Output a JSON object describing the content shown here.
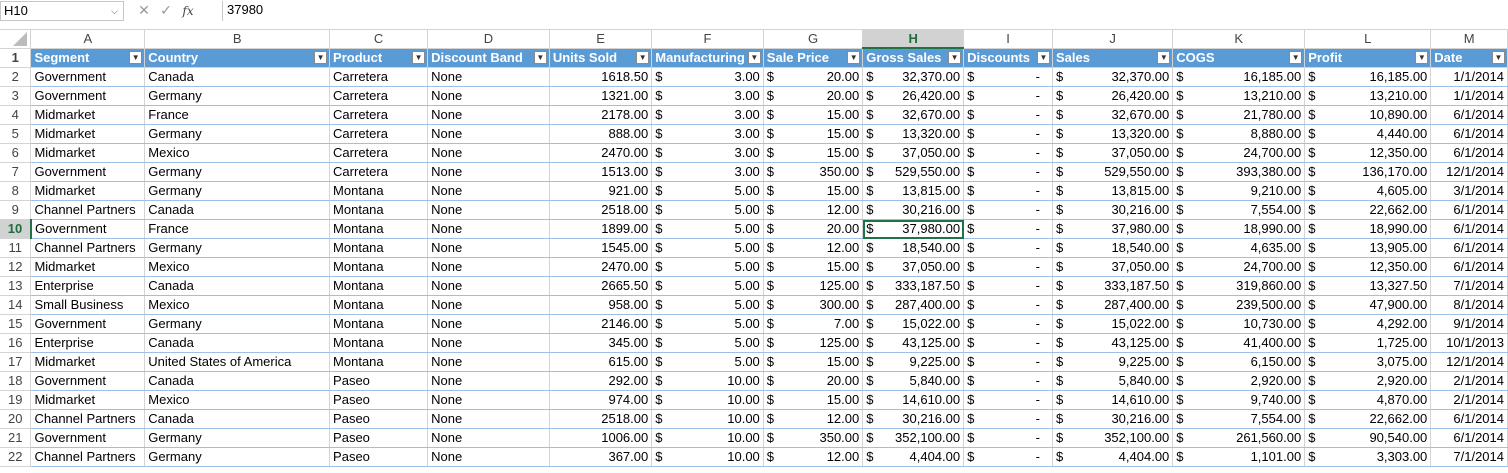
{
  "formula_bar": {
    "name_box": "H10",
    "cancel_icon": "✕",
    "enter_icon": "✓",
    "fx_label": "fx",
    "formula_value": "37980"
  },
  "column_letters": [
    "A",
    "B",
    "C",
    "D",
    "E",
    "F",
    "G",
    "H",
    "I",
    "J",
    "K",
    "L",
    "M"
  ],
  "selected_column": "H",
  "selected_row": 10,
  "headers": [
    "Segment",
    "Country",
    "Product",
    "Discount Band",
    "Units Sold",
    "Manufacturing",
    "Sale Price",
    "Gross Sales",
    "Discounts",
    "Sales",
    "COGS",
    "Profit",
    "Date"
  ],
  "currency_symbol": "$",
  "rows": [
    {
      "n": "2",
      "c": [
        "Government",
        "Canada",
        "Carretera",
        "None",
        "1618.50",
        "3.00",
        "20.00",
        "32,370.00",
        "-",
        "32,370.00",
        "16,185.00",
        "16,185.00",
        "1/1/2014"
      ]
    },
    {
      "n": "3",
      "c": [
        "Government",
        "Germany",
        "Carretera",
        "None",
        "1321.00",
        "3.00",
        "20.00",
        "26,420.00",
        "-",
        "26,420.00",
        "13,210.00",
        "13,210.00",
        "1/1/2014"
      ]
    },
    {
      "n": "4",
      "c": [
        "Midmarket",
        "France",
        "Carretera",
        "None",
        "2178.00",
        "3.00",
        "15.00",
        "32,670.00",
        "-",
        "32,670.00",
        "21,780.00",
        "10,890.00",
        "6/1/2014"
      ]
    },
    {
      "n": "5",
      "c": [
        "Midmarket",
        "Germany",
        "Carretera",
        "None",
        "888.00",
        "3.00",
        "15.00",
        "13,320.00",
        "-",
        "13,320.00",
        "8,880.00",
        "4,440.00",
        "6/1/2014"
      ]
    },
    {
      "n": "6",
      "c": [
        "Midmarket",
        "Mexico",
        "Carretera",
        "None",
        "2470.00",
        "3.00",
        "15.00",
        "37,050.00",
        "-",
        "37,050.00",
        "24,700.00",
        "12,350.00",
        "6/1/2014"
      ]
    },
    {
      "n": "7",
      "c": [
        "Government",
        "Germany",
        "Carretera",
        "None",
        "1513.00",
        "3.00",
        "350.00",
        "529,550.00",
        "-",
        "529,550.00",
        "393,380.00",
        "136,170.00",
        "12/1/2014"
      ]
    },
    {
      "n": "8",
      "c": [
        "Midmarket",
        "Germany",
        "Montana",
        "None",
        "921.00",
        "5.00",
        "15.00",
        "13,815.00",
        "-",
        "13,815.00",
        "9,210.00",
        "4,605.00",
        "3/1/2014"
      ]
    },
    {
      "n": "9",
      "c": [
        "Channel Partners",
        "Canada",
        "Montana",
        "None",
        "2518.00",
        "5.00",
        "12.00",
        "30,216.00",
        "-",
        "30,216.00",
        "7,554.00",
        "22,662.00",
        "6/1/2014"
      ]
    },
    {
      "n": "10",
      "c": [
        "Government",
        "France",
        "Montana",
        "None",
        "1899.00",
        "5.00",
        "20.00",
        "37,980.00",
        "-",
        "37,980.00",
        "18,990.00",
        "18,990.00",
        "6/1/2014"
      ]
    },
    {
      "n": "11",
      "c": [
        "Channel Partners",
        "Germany",
        "Montana",
        "None",
        "1545.00",
        "5.00",
        "12.00",
        "18,540.00",
        "-",
        "18,540.00",
        "4,635.00",
        "13,905.00",
        "6/1/2014"
      ]
    },
    {
      "n": "12",
      "c": [
        "Midmarket",
        "Mexico",
        "Montana",
        "None",
        "2470.00",
        "5.00",
        "15.00",
        "37,050.00",
        "-",
        "37,050.00",
        "24,700.00",
        "12,350.00",
        "6/1/2014"
      ]
    },
    {
      "n": "13",
      "c": [
        "Enterprise",
        "Canada",
        "Montana",
        "None",
        "2665.50",
        "5.00",
        "125.00",
        "333,187.50",
        "-",
        "333,187.50",
        "319,860.00",
        "13,327.50",
        "7/1/2014"
      ]
    },
    {
      "n": "14",
      "c": [
        "Small Business",
        "Mexico",
        "Montana",
        "None",
        "958.00",
        "5.00",
        "300.00",
        "287,400.00",
        "-",
        "287,400.00",
        "239,500.00",
        "47,900.00",
        "8/1/2014"
      ]
    },
    {
      "n": "15",
      "c": [
        "Government",
        "Germany",
        "Montana",
        "None",
        "2146.00",
        "5.00",
        "7.00",
        "15,022.00",
        "-",
        "15,022.00",
        "10,730.00",
        "4,292.00",
        "9/1/2014"
      ]
    },
    {
      "n": "16",
      "c": [
        "Enterprise",
        "Canada",
        "Montana",
        "None",
        "345.00",
        "5.00",
        "125.00",
        "43,125.00",
        "-",
        "43,125.00",
        "41,400.00",
        "1,725.00",
        "10/1/2013"
      ]
    },
    {
      "n": "17",
      "c": [
        "Midmarket",
        "United States of America",
        "Montana",
        "None",
        "615.00",
        "5.00",
        "15.00",
        "9,225.00",
        "-",
        "9,225.00",
        "6,150.00",
        "3,075.00",
        "12/1/2014"
      ]
    },
    {
      "n": "18",
      "c": [
        "Government",
        "Canada",
        "Paseo",
        "None",
        "292.00",
        "10.00",
        "20.00",
        "5,840.00",
        "-",
        "5,840.00",
        "2,920.00",
        "2,920.00",
        "2/1/2014"
      ]
    },
    {
      "n": "19",
      "c": [
        "Midmarket",
        "Mexico",
        "Paseo",
        "None",
        "974.00",
        "10.00",
        "15.00",
        "14,610.00",
        "-",
        "14,610.00",
        "9,740.00",
        "4,870.00",
        "2/1/2014"
      ]
    },
    {
      "n": "20",
      "c": [
        "Channel Partners",
        "Canada",
        "Paseo",
        "None",
        "2518.00",
        "10.00",
        "12.00",
        "30,216.00",
        "-",
        "30,216.00",
        "7,554.00",
        "22,662.00",
        "6/1/2014"
      ]
    },
    {
      "n": "21",
      "c": [
        "Government",
        "Germany",
        "Paseo",
        "None",
        "1006.00",
        "10.00",
        "350.00",
        "352,100.00",
        "-",
        "352,100.00",
        "261,560.00",
        "90,540.00",
        "6/1/2014"
      ]
    },
    {
      "n": "22",
      "c": [
        "Channel Partners",
        "Germany",
        "Paseo",
        "None",
        "367.00",
        "10.00",
        "12.00",
        "4,404.00",
        "-",
        "4,404.00",
        "1,101.00",
        "3,303.00",
        "7/1/2014"
      ]
    }
  ],
  "colors": {
    "header_fill": "#5b9bd5",
    "selection": "#217346",
    "row_border": "#9bc2e6"
  }
}
